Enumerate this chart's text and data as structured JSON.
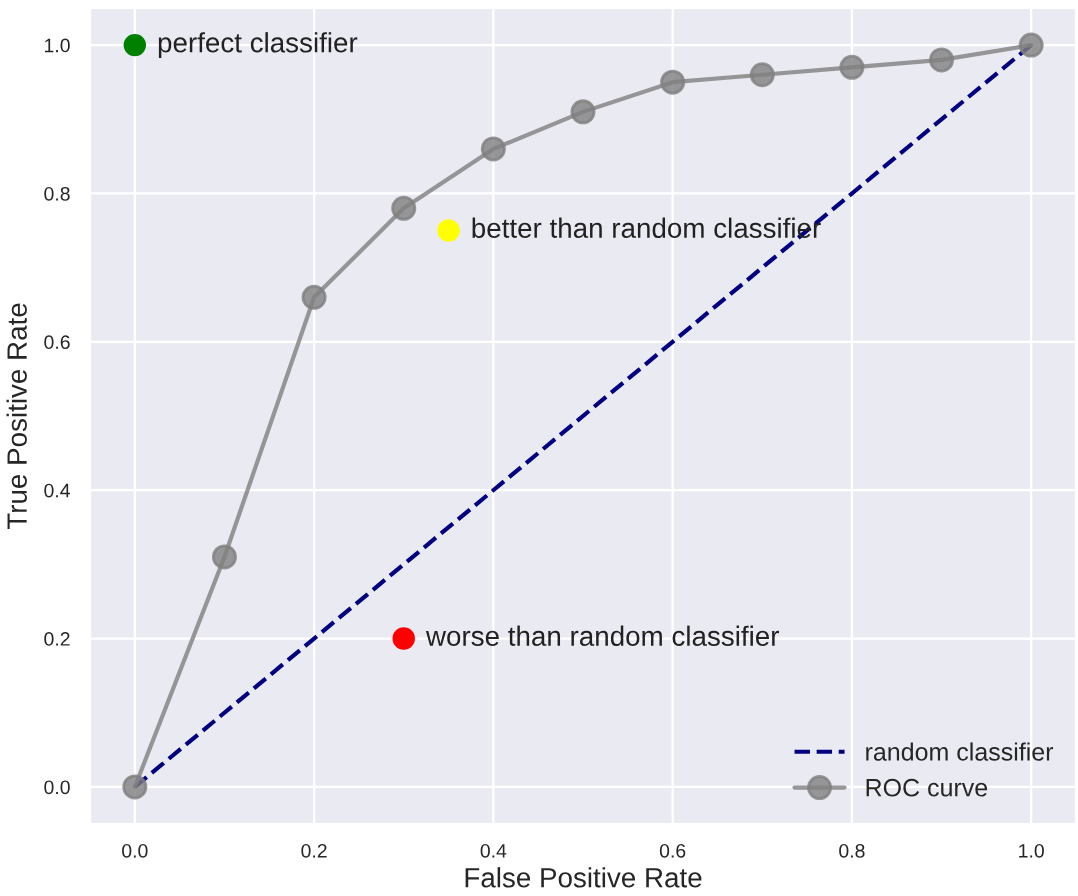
{
  "chart_data": {
    "type": "line",
    "xlabel": "False Positive Rate",
    "ylabel": "True Positive Rate",
    "xlim": [
      -0.05,
      1.05
    ],
    "ylim": [
      -0.05,
      1.05
    ],
    "xticks": [
      {
        "value": 0,
        "label": "0.0"
      },
      0.2,
      0.4,
      0.6,
      0.8,
      {
        "value": 1,
        "label": "1.0"
      }
    ],
    "yticks": [
      {
        "value": 0,
        "label": "0.0"
      },
      0.2,
      0.4,
      0.6,
      0.8,
      {
        "value": 1,
        "label": "1.0"
      }
    ],
    "grid": true,
    "legend": "bottom right",
    "series": [
      {
        "name": "random classifier",
        "color": "#000080",
        "line_style": "dashed",
        "marker": "none",
        "x": [
          0,
          1
        ],
        "values": [
          0,
          1
        ]
      },
      {
        "name": "ROC curve",
        "color": "#808080",
        "line_style": "solid",
        "marker": "circle",
        "x": [
          0,
          0.1,
          0.2,
          0.3,
          0.4,
          0.5,
          0.6,
          0.7,
          0.8,
          0.9,
          1.0
        ],
        "values": [
          0,
          0.31,
          0.66,
          0.78,
          0.86,
          0.91,
          0.95,
          0.96,
          0.97,
          0.98,
          1.0
        ]
      },
      {
        "type": "scatter",
        "x": [
          0,
          0.35,
          0.3
        ],
        "values": [
          1.0,
          0.75,
          0.2
        ],
        "colors": [
          "#008000",
          "#ffff00",
          "#ff0000"
        ]
      }
    ],
    "annotations": [
      {
        "text": "perfect classifier",
        "x": 0,
        "y": 1.0
      },
      {
        "text": "better than random classifier",
        "x": 0.35,
        "y": 0.75
      },
      {
        "text": "worse than random classifier",
        "x": 0.3,
        "y": 0.2
      }
    ]
  }
}
